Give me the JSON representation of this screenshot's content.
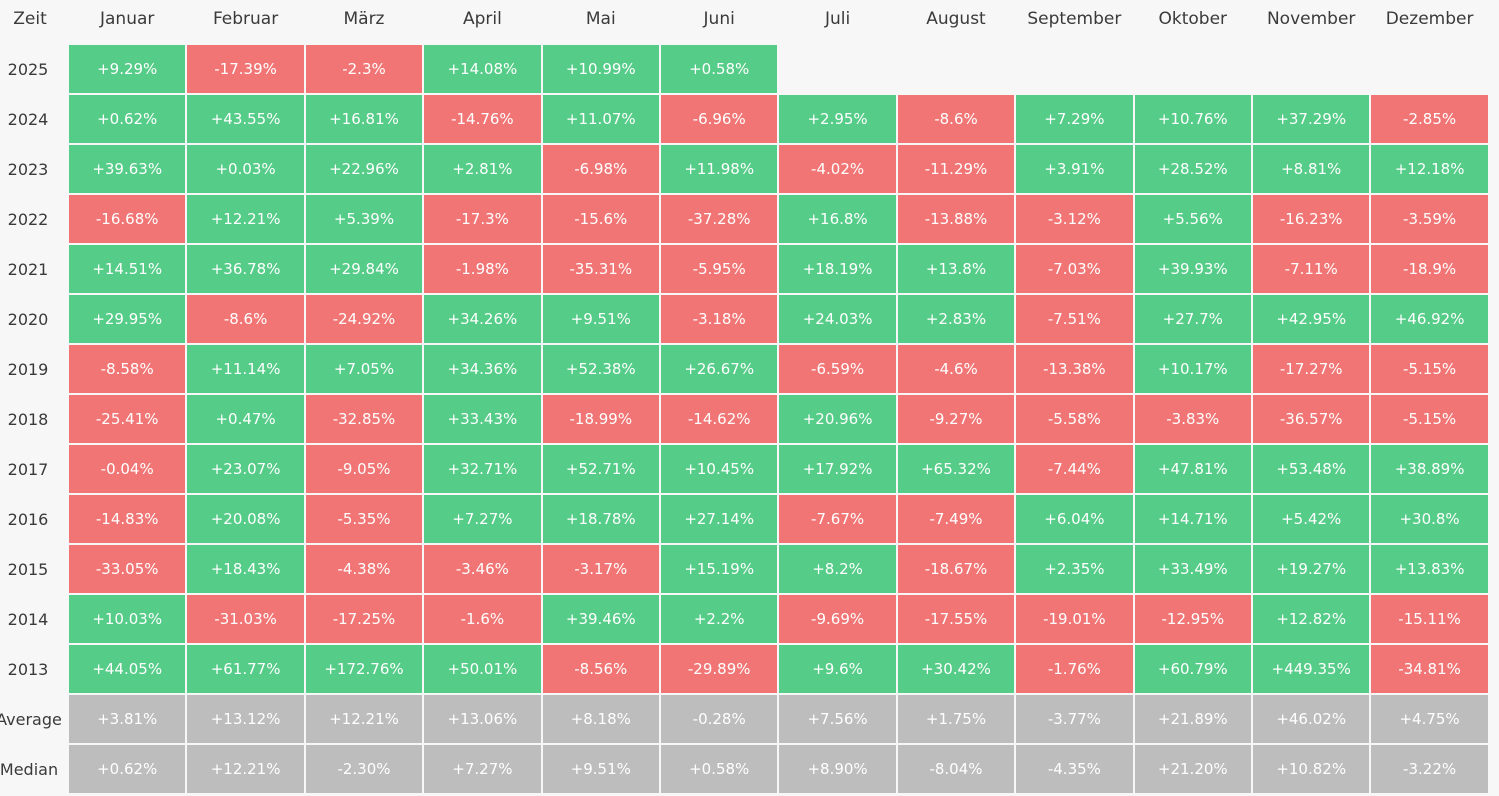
{
  "colors": {
    "positive": "#55cc88",
    "negative": "#f27575",
    "summary": "#bdbdbd"
  },
  "chart_data": {
    "type": "heatmap",
    "corner_label": "Zeit",
    "columns": [
      "Januar",
      "Februar",
      "März",
      "April",
      "Mai",
      "Juni",
      "Juli",
      "August",
      "September",
      "Oktober",
      "November",
      "Dezember"
    ],
    "rows": [
      {
        "label": "2025",
        "kind": "year",
        "values": [
          "+9.29%",
          "-17.39%",
          "-2.3%",
          "+14.08%",
          "+10.99%",
          "+0.58%",
          "",
          "",
          "",
          "",
          "",
          ""
        ]
      },
      {
        "label": "2024",
        "kind": "year",
        "values": [
          "+0.62%",
          "+43.55%",
          "+16.81%",
          "-14.76%",
          "+11.07%",
          "-6.96%",
          "+2.95%",
          "-8.6%",
          "+7.29%",
          "+10.76%",
          "+37.29%",
          "-2.85%"
        ]
      },
      {
        "label": "2023",
        "kind": "year",
        "values": [
          "+39.63%",
          "+0.03%",
          "+22.96%",
          "+2.81%",
          "-6.98%",
          "+11.98%",
          "-4.02%",
          "-11.29%",
          "+3.91%",
          "+28.52%",
          "+8.81%",
          "+12.18%"
        ]
      },
      {
        "label": "2022",
        "kind": "year",
        "values": [
          "-16.68%",
          "+12.21%",
          "+5.39%",
          "-17.3%",
          "-15.6%",
          "-37.28%",
          "+16.8%",
          "-13.88%",
          "-3.12%",
          "+5.56%",
          "-16.23%",
          "-3.59%"
        ]
      },
      {
        "label": "2021",
        "kind": "year",
        "values": [
          "+14.51%",
          "+36.78%",
          "+29.84%",
          "-1.98%",
          "-35.31%",
          "-5.95%",
          "+18.19%",
          "+13.8%",
          "-7.03%",
          "+39.93%",
          "-7.11%",
          "-18.9%"
        ]
      },
      {
        "label": "2020",
        "kind": "year",
        "values": [
          "+29.95%",
          "-8.6%",
          "-24.92%",
          "+34.26%",
          "+9.51%",
          "-3.18%",
          "+24.03%",
          "+2.83%",
          "-7.51%",
          "+27.7%",
          "+42.95%",
          "+46.92%"
        ]
      },
      {
        "label": "2019",
        "kind": "year",
        "values": [
          "-8.58%",
          "+11.14%",
          "+7.05%",
          "+34.36%",
          "+52.38%",
          "+26.67%",
          "-6.59%",
          "-4.6%",
          "-13.38%",
          "+10.17%",
          "-17.27%",
          "-5.15%"
        ]
      },
      {
        "label": "2018",
        "kind": "year",
        "values": [
          "-25.41%",
          "+0.47%",
          "-32.85%",
          "+33.43%",
          "-18.99%",
          "-14.62%",
          "+20.96%",
          "-9.27%",
          "-5.58%",
          "-3.83%",
          "-36.57%",
          "-5.15%"
        ]
      },
      {
        "label": "2017",
        "kind": "year",
        "values": [
          "-0.04%",
          "+23.07%",
          "-9.05%",
          "+32.71%",
          "+52.71%",
          "+10.45%",
          "+17.92%",
          "+65.32%",
          "-7.44%",
          "+47.81%",
          "+53.48%",
          "+38.89%"
        ]
      },
      {
        "label": "2016",
        "kind": "year",
        "values": [
          "-14.83%",
          "+20.08%",
          "-5.35%",
          "+7.27%",
          "+18.78%",
          "+27.14%",
          "-7.67%",
          "-7.49%",
          "+6.04%",
          "+14.71%",
          "+5.42%",
          "+30.8%"
        ]
      },
      {
        "label": "2015",
        "kind": "year",
        "values": [
          "-33.05%",
          "+18.43%",
          "-4.38%",
          "-3.46%",
          "-3.17%",
          "+15.19%",
          "+8.2%",
          "-18.67%",
          "+2.35%",
          "+33.49%",
          "+19.27%",
          "+13.83%"
        ]
      },
      {
        "label": "2014",
        "kind": "year",
        "values": [
          "+10.03%",
          "-31.03%",
          "-17.25%",
          "-1.6%",
          "+39.46%",
          "+2.2%",
          "-9.69%",
          "-17.55%",
          "-19.01%",
          "-12.95%",
          "+12.82%",
          "-15.11%"
        ]
      },
      {
        "label": "2013",
        "kind": "year",
        "values": [
          "+44.05%",
          "+61.77%",
          "+172.76%",
          "+50.01%",
          "-8.56%",
          "-29.89%",
          "+9.6%",
          "+30.42%",
          "-1.76%",
          "+60.79%",
          "+449.35%",
          "-34.81%"
        ]
      },
      {
        "label": "Average",
        "kind": "summary",
        "values": [
          "+3.81%",
          "+13.12%",
          "+12.21%",
          "+13.06%",
          "+8.18%",
          "-0.28%",
          "+7.56%",
          "+1.75%",
          "-3.77%",
          "+21.89%",
          "+46.02%",
          "+4.75%"
        ]
      },
      {
        "label": "Median",
        "kind": "summary",
        "values": [
          "+0.62%",
          "+12.21%",
          "-2.30%",
          "+7.27%",
          "+9.51%",
          "+0.58%",
          "+8.90%",
          "-8.04%",
          "-4.35%",
          "+21.20%",
          "+10.82%",
          "-3.22%"
        ]
      }
    ]
  }
}
